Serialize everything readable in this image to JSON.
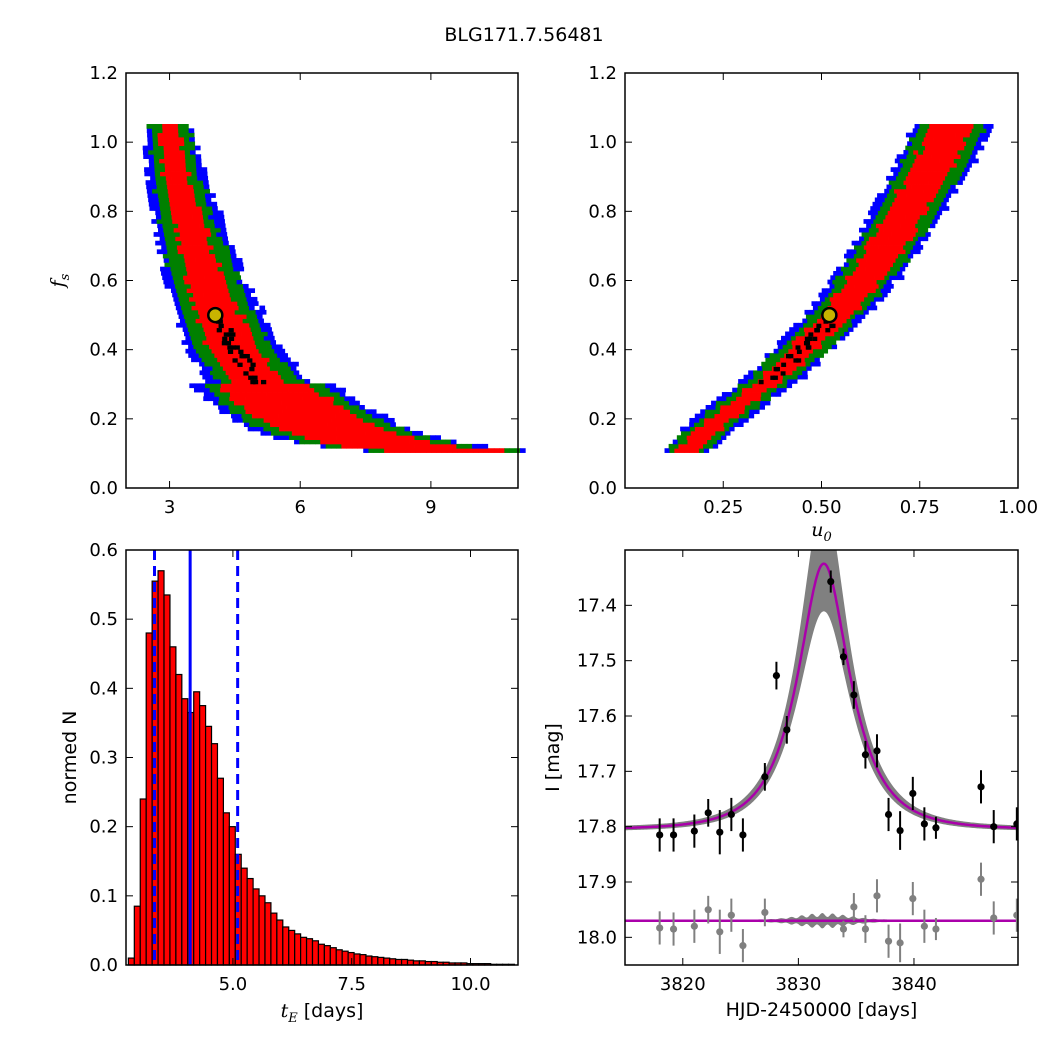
{
  "figure": {
    "title": "BLG171.7.56481"
  },
  "chart_data": [
    {
      "id": "fs-vs-tE",
      "type": "heatmap",
      "xlabel": "",
      "ylabel": "f_s",
      "xlim": [
        2,
        11
      ],
      "ylim": [
        0.0,
        1.2
      ],
      "xticks": [
        "3",
        "6",
        "9"
      ],
      "xtick_values": [
        3,
        6,
        9
      ],
      "yticks": [
        "0.0",
        "0.2",
        "0.4",
        "0.6",
        "0.8",
        "1.0",
        "1.2"
      ],
      "ytick_values": [
        0.0,
        0.2,
        0.4,
        0.6,
        0.8,
        1.0,
        1.2
      ],
      "contour_colors": {
        "outer": "#0000ff",
        "mid": "#008000",
        "inner": "#ff0000",
        "core": "#000000"
      },
      "best_fit": {
        "x": 4.05,
        "y": 0.5
      },
      "band": [
        [
          2.9,
          1.05
        ],
        [
          3.1,
          0.9
        ],
        [
          3.4,
          0.75
        ],
        [
          3.7,
          0.62
        ],
        [
          4.0,
          0.52
        ],
        [
          4.4,
          0.4
        ],
        [
          5.0,
          0.3
        ],
        [
          5.7,
          0.23
        ],
        [
          6.5,
          0.17
        ],
        [
          7.5,
          0.13
        ],
        [
          8.5,
          0.11
        ],
        [
          9.5,
          0.1
        ],
        [
          10.5,
          0.095
        ]
      ]
    },
    {
      "id": "fs-vs-u0",
      "type": "heatmap",
      "xlabel": "u_0",
      "ylabel": "",
      "xlim": [
        0.0,
        1.0
      ],
      "ylim": [
        0.0,
        1.2
      ],
      "xticks": [
        "0.25",
        "0.50",
        "0.75",
        "1.00"
      ],
      "xtick_values": [
        0.25,
        0.5,
        0.75,
        1.0
      ],
      "yticks": [
        "0.0",
        "0.2",
        "0.4",
        "0.6",
        "0.8",
        "1.0",
        "1.2"
      ],
      "ytick_values": [
        0.0,
        0.2,
        0.4,
        0.6,
        0.8,
        1.0,
        1.2
      ],
      "contour_colors": {
        "outer": "#0000ff",
        "mid": "#008000",
        "inner": "#ff0000",
        "core": "#000000"
      },
      "best_fit": {
        "x": 0.52,
        "y": 0.5
      },
      "band": [
        [
          0.15,
          0.1
        ],
        [
          0.22,
          0.18
        ],
        [
          0.3,
          0.25
        ],
        [
          0.38,
          0.32
        ],
        [
          0.45,
          0.4
        ],
        [
          0.52,
          0.48
        ],
        [
          0.58,
          0.56
        ],
        [
          0.63,
          0.64
        ],
        [
          0.68,
          0.73
        ],
        [
          0.73,
          0.83
        ],
        [
          0.78,
          0.93
        ],
        [
          0.83,
          1.05
        ]
      ]
    },
    {
      "id": "tE-histogram",
      "type": "bar",
      "xlabel": "t_E  [days]",
      "ylabel": "normed N",
      "xlim": [
        2.75,
        11.0
      ],
      "ylim": [
        0.0,
        0.6
      ],
      "xticks": [
        "5.0",
        "7.5",
        "10.0"
      ],
      "xtick_values": [
        5.0,
        7.5,
        10.0
      ],
      "yticks": [
        "0.0",
        "0.1",
        "0.2",
        "0.3",
        "0.4",
        "0.5",
        "0.6"
      ],
      "ytick_values": [
        0.0,
        0.1,
        0.2,
        0.3,
        0.4,
        0.5,
        0.6
      ],
      "bin_start": 2.8,
      "bin_width": 0.125,
      "values": [
        0.01,
        0.085,
        0.24,
        0.48,
        0.555,
        0.57,
        0.535,
        0.46,
        0.42,
        0.385,
        0.365,
        0.395,
        0.375,
        0.345,
        0.32,
        0.27,
        0.22,
        0.2,
        0.16,
        0.14,
        0.125,
        0.11,
        0.1,
        0.09,
        0.075,
        0.065,
        0.055,
        0.05,
        0.045,
        0.04,
        0.038,
        0.035,
        0.03,
        0.028,
        0.025,
        0.022,
        0.02,
        0.018,
        0.016,
        0.015,
        0.013,
        0.012,
        0.011,
        0.01,
        0.009,
        0.008,
        0.008,
        0.007,
        0.006,
        0.006,
        0.005,
        0.005,
        0.004,
        0.004,
        0.003,
        0.003,
        0.003,
        0.002,
        0.002,
        0.002,
        0.002,
        0.001,
        0.001,
        0.001,
        0.001
      ],
      "median": 4.1,
      "bounds": [
        3.35,
        5.1
      ],
      "bar_color": "#ff0000",
      "line_color": "#0000ff"
    },
    {
      "id": "lightcurve",
      "type": "scatter",
      "xlabel": "HJD-2450000 [days]",
      "ylabel": "I [mag]",
      "xlim": [
        3815,
        3849
      ],
      "ylim": [
        18.05,
        17.3
      ],
      "xticks": [
        "3820",
        "3830",
        "3840"
      ],
      "xtick_values": [
        3820,
        3830,
        3840
      ],
      "yticks": [
        "17.4",
        "17.5",
        "17.6",
        "17.7",
        "17.8",
        "17.9",
        "18.0"
      ],
      "ytick_values": [
        17.4,
        17.5,
        17.6,
        17.7,
        17.8,
        17.9,
        18.0
      ],
      "model": {
        "t0": 3832.2,
        "tE": 4.1,
        "u0": 0.52,
        "fs": 0.5,
        "baseline": 17.805,
        "residual_baseline": 17.97
      },
      "points": [
        {
          "x": 3818.0,
          "y": 17.815,
          "e": 0.03
        },
        {
          "x": 3819.2,
          "y": 17.815,
          "e": 0.03
        },
        {
          "x": 3821.0,
          "y": 17.808,
          "e": 0.03
        },
        {
          "x": 3822.2,
          "y": 17.775,
          "e": 0.025
        },
        {
          "x": 3823.2,
          "y": 17.81,
          "e": 0.04
        },
        {
          "x": 3824.2,
          "y": 17.778,
          "e": 0.03
        },
        {
          "x": 3825.2,
          "y": 17.815,
          "e": 0.03
        },
        {
          "x": 3827.1,
          "y": 17.71,
          "e": 0.025
        },
        {
          "x": 3828.1,
          "y": 17.527,
          "e": 0.025
        },
        {
          "x": 3829.0,
          "y": 17.625,
          "e": 0.025
        },
        {
          "x": 3832.8,
          "y": 17.357,
          "e": 0.02
        },
        {
          "x": 3833.9,
          "y": 17.493,
          "e": 0.015
        },
        {
          "x": 3834.8,
          "y": 17.562,
          "e": 0.025
        },
        {
          "x": 3835.8,
          "y": 17.67,
          "e": 0.025
        },
        {
          "x": 3836.8,
          "y": 17.663,
          "e": 0.03
        },
        {
          "x": 3837.8,
          "y": 17.778,
          "e": 0.03
        },
        {
          "x": 3838.8,
          "y": 17.807,
          "e": 0.035
        },
        {
          "x": 3839.9,
          "y": 17.74,
          "e": 0.03
        },
        {
          "x": 3840.9,
          "y": 17.795,
          "e": 0.03
        },
        {
          "x": 3841.9,
          "y": 17.802,
          "e": 0.02
        },
        {
          "x": 3845.8,
          "y": 17.728,
          "e": 0.03
        },
        {
          "x": 3846.9,
          "y": 17.8,
          "e": 0.03
        },
        {
          "x": 3848.9,
          "y": 17.795,
          "e": 0.03
        }
      ],
      "residuals": [
        {
          "x": 3818.0,
          "y": 17.983,
          "e": 0.03
        },
        {
          "x": 3819.2,
          "y": 17.985,
          "e": 0.03
        },
        {
          "x": 3821.0,
          "y": 17.98,
          "e": 0.03
        },
        {
          "x": 3822.2,
          "y": 17.95,
          "e": 0.025
        },
        {
          "x": 3823.2,
          "y": 17.99,
          "e": 0.04
        },
        {
          "x": 3824.2,
          "y": 17.96,
          "e": 0.03
        },
        {
          "x": 3825.2,
          "y": 18.015,
          "e": 0.03
        },
        {
          "x": 3827.1,
          "y": 17.955,
          "e": 0.025
        },
        {
          "x": 3833.9,
          "y": 17.985,
          "e": 0.015
        },
        {
          "x": 3834.8,
          "y": 17.945,
          "e": 0.025
        },
        {
          "x": 3835.8,
          "y": 17.985,
          "e": 0.025
        },
        {
          "x": 3836.8,
          "y": 17.925,
          "e": 0.03
        },
        {
          "x": 3837.8,
          "y": 18.007,
          "e": 0.03
        },
        {
          "x": 3838.8,
          "y": 18.01,
          "e": 0.035
        },
        {
          "x": 3839.9,
          "y": 17.93,
          "e": 0.03
        },
        {
          "x": 3840.9,
          "y": 17.98,
          "e": 0.03
        },
        {
          "x": 3841.9,
          "y": 17.985,
          "e": 0.02
        },
        {
          "x": 3845.8,
          "y": 17.895,
          "e": 0.03
        },
        {
          "x": 3846.9,
          "y": 17.965,
          "e": 0.03
        },
        {
          "x": 3848.9,
          "y": 17.96,
          "e": 0.03
        }
      ],
      "point_color": "#000000",
      "residual_color": "#808080",
      "model_color": "#aa00aa",
      "band_color": "#808080"
    }
  ]
}
